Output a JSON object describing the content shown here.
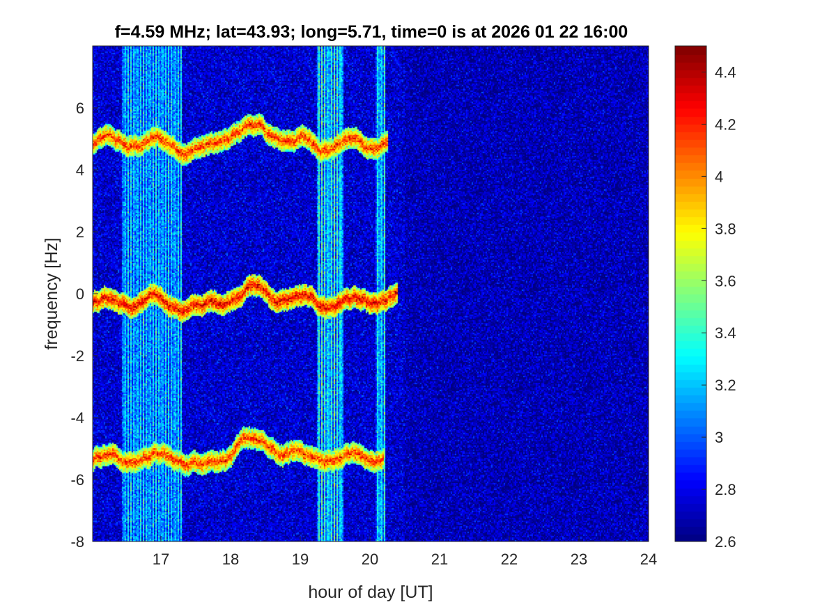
{
  "chart_data": {
    "type": "heatmap",
    "title": "f=4.59 MHz;  lat=43.93; long=5.71, time=0 is at 2026 01 22 16:00",
    "xlabel": "hour of day [UT]",
    "ylabel": "frequency [Hz]",
    "xlim": [
      16.02,
      24.0
    ],
    "ylim": [
      -8.0,
      8.0
    ],
    "x_ticks": [
      17,
      18,
      19,
      20,
      21,
      22,
      23,
      24
    ],
    "y_ticks": [
      -8,
      -6,
      -4,
      -2,
      0,
      2,
      4,
      6
    ],
    "colorbar": {
      "colormap": "jet",
      "clim": [
        2.6,
        4.5
      ],
      "ticks": [
        2.6,
        2.8,
        3,
        3.2,
        3.4,
        3.6,
        3.8,
        4,
        4.2,
        4.4
      ]
    },
    "background_level": 2.75,
    "interference_bands": [
      {
        "x_start": 16.45,
        "x_end": 17.3,
        "level": 3.35
      },
      {
        "x_start": 19.25,
        "x_end": 19.62,
        "level": 3.5
      },
      {
        "x_start": 20.08,
        "x_end": 20.22,
        "level": 3.45
      }
    ],
    "echo_traces": [
      {
        "name": "",
        "y_center": 4.85,
        "x_start": 16.02,
        "x_end": 20.25,
        "level": 4.2
      },
      {
        "name": "",
        "y_center": -0.3,
        "x_start": 16.02,
        "x_end": 20.4,
        "level": 4.3
      },
      {
        "name": "",
        "y_center": -5.3,
        "x_start": 16.02,
        "x_end": 20.2,
        "level": 4.2
      }
    ]
  }
}
